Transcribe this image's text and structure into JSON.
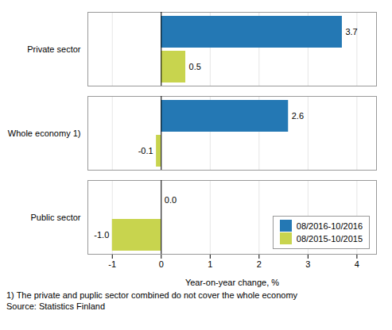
{
  "chart_data": {
    "type": "bar",
    "orientation": "horizontal",
    "categories": [
      "Public sector",
      "Whole economy 1)",
      "Private sector"
    ],
    "series": [
      {
        "name": "08/2016-10/2016",
        "color": "#2478B4",
        "values": [
          0.0,
          2.6,
          3.7
        ],
        "value_labels": [
          "0.0",
          "2.6",
          "3.7"
        ]
      },
      {
        "name": "08/2015-10/2015",
        "color": "#C8D44E",
        "values": [
          -1.0,
          -0.1,
          0.5
        ],
        "value_labels": [
          "-1.0",
          "-0.1",
          "0.5"
        ]
      }
    ],
    "xlabel": "Year-on-year change, %",
    "xlim": [
      -1.5,
      4.4
    ],
    "xticks": [
      -1,
      0,
      1,
      2,
      3,
      4
    ],
    "grid": true,
    "data_labels": true,
    "legend": "lower right",
    "annotations": [
      "1) The private and puplic sector combined do not cover the whole economy",
      "Source: Statistics Finland"
    ]
  }
}
